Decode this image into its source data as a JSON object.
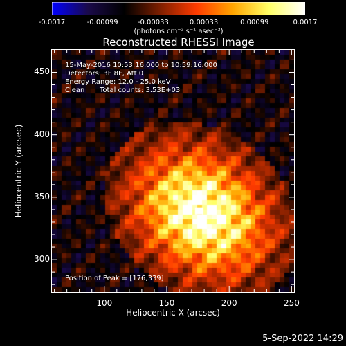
{
  "colorbar": {
    "colors": [
      "#0000ff",
      "#1a0a4a",
      "#000000",
      "#7f1f00",
      "#ff3b00",
      "#ffa500",
      "#ffff66",
      "#ffffff"
    ],
    "tick_labels": [
      "-0.0017",
      "-0.00099",
      "-0.00033",
      "0.00033",
      "0.00099",
      "0.0017"
    ],
    "unit": "(photons cm⁻² s⁻¹ asec⁻²)"
  },
  "chart_data": {
    "type": "heatmap",
    "title": "Reconstructed RHESSI Image",
    "xlabel": "Heliocentric X (arcsec)",
    "ylabel": "Heliocentric Y (arcsec)",
    "xlim": [
      58,
      252
    ],
    "ylim": [
      274,
      468
    ],
    "x_ticks": [
      100,
      150,
      200,
      250
    ],
    "y_ticks": [
      300,
      350,
      400,
      450
    ],
    "x_tick_labels": [
      "100",
      "150",
      "200",
      "250"
    ],
    "y_tick_labels": [
      "300",
      "350",
      "400",
      "450"
    ],
    "zlim": [
      -0.0017,
      0.0017
    ],
    "peak": {
      "x": 176,
      "y": 339
    },
    "annotations": {
      "time_range": "15-May-2016 10:53:16.000 to 10:59:16.000",
      "detectors": "Detectors: 3F 8F, Att 0",
      "energy_range": "Energy Range: 12.0 - 25.0 keV",
      "clean": "Clean",
      "total_counts": "Total counts: 3.53E+03",
      "peak_label": "Position of Peak = [176,339]"
    }
  },
  "footer": {
    "date": "5-Sep-2022 14:29"
  }
}
